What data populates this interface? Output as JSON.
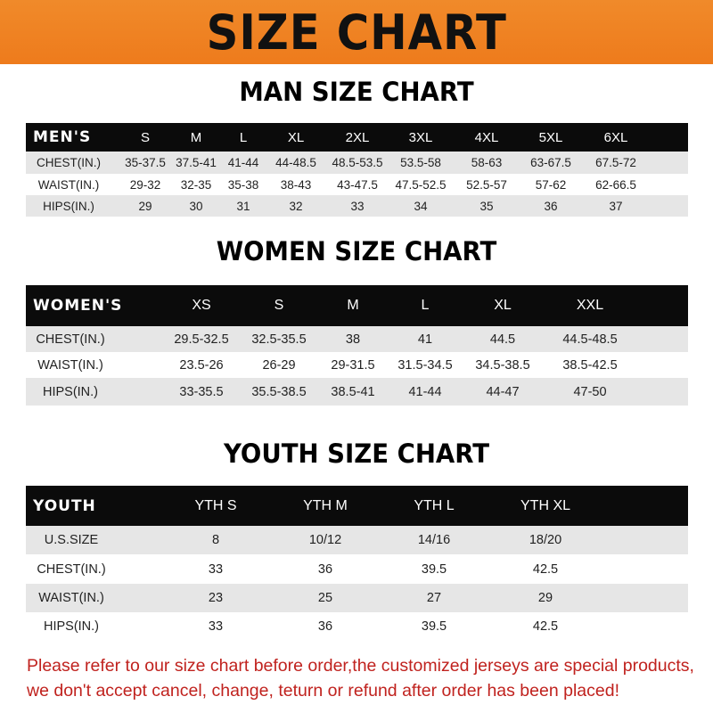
{
  "title": "SIZE CHART",
  "men": {
    "title": "MAN SIZE CHART",
    "header": "MEN'S",
    "sizes": [
      "S",
      "M",
      "L",
      "XL",
      "2XL",
      "3XL",
      "4XL",
      "5XL",
      "6XL"
    ],
    "rows": [
      {
        "label": "CHEST(IN.)",
        "values": [
          "35-37.5",
          "37.5-41",
          "41-44",
          "44-48.5",
          "48.5-53.5",
          "53.5-58",
          "58-63",
          "63-67.5",
          "67.5-72"
        ]
      },
      {
        "label": "WAIST(IN.)",
        "values": [
          "29-32",
          "32-35",
          "35-38",
          "38-43",
          "43-47.5",
          "47.5-52.5",
          "52.5-57",
          "57-62",
          "62-66.5"
        ]
      },
      {
        "label": "HIPS(IN.)",
        "values": [
          "29",
          "30",
          "31",
          "32",
          "33",
          "34",
          "35",
          "36",
          "37"
        ]
      }
    ]
  },
  "women": {
    "title": "WOMEN SIZE CHART",
    "header": "WOMEN'S",
    "sizes": [
      "XS",
      "S",
      "M",
      "L",
      "XL",
      "XXL"
    ],
    "rows": [
      {
        "label": "CHEST(IN.)",
        "values": [
          "29.5-32.5",
          "32.5-35.5",
          "38",
          "41",
          "44.5",
          "44.5-48.5"
        ]
      },
      {
        "label": "WAIST(IN.)",
        "values": [
          "23.5-26",
          "26-29",
          "29-31.5",
          "31.5-34.5",
          "34.5-38.5",
          "38.5-42.5"
        ]
      },
      {
        "label": "HIPS(IN.)",
        "values": [
          "33-35.5",
          "35.5-38.5",
          "38.5-41",
          "41-44",
          "44-47",
          "47-50"
        ]
      }
    ]
  },
  "youth": {
    "title": "YOUTH SIZE CHART",
    "header": "YOUTH",
    "sizes": [
      "YTH S",
      "YTH M",
      "YTH L",
      "YTH XL"
    ],
    "rows": [
      {
        "label": "U.S.SIZE",
        "values": [
          "8",
          "10/12",
          "14/16",
          "18/20"
        ]
      },
      {
        "label": "CHEST(IN.)",
        "values": [
          "33",
          "36",
          "39.5",
          "42.5"
        ]
      },
      {
        "label": "WAIST(IN.)",
        "values": [
          "23",
          "25",
          "27",
          "29"
        ]
      },
      {
        "label": "HIPS(IN.)",
        "values": [
          "33",
          "36",
          "39.5",
          "42.5"
        ]
      }
    ]
  },
  "footer": {
    "line1": "Please refer to our size chart before order,the customized jerseys are special products,",
    "line2": "we don't accept cancel, change, teturn or refund after order has been placed!"
  }
}
